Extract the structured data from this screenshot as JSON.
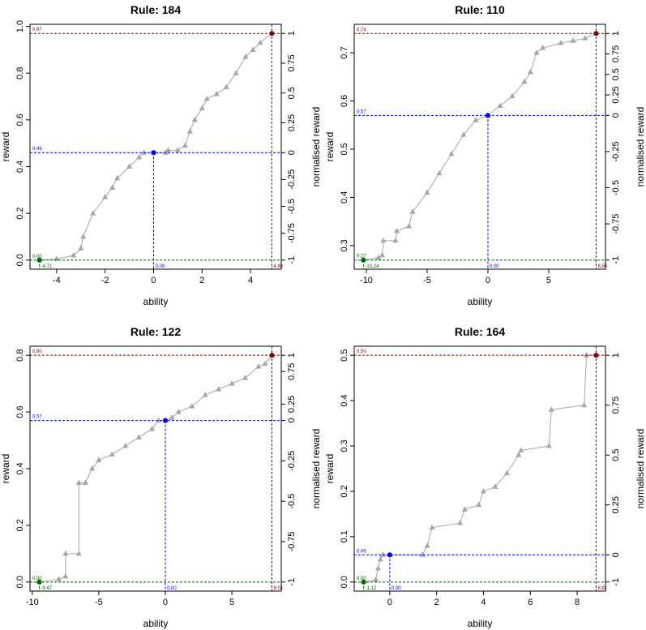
{
  "chart_data": [
    {
      "type": "line",
      "title": "Rule: 184",
      "x_label": "ability",
      "y_label": "reward",
      "y2_label": "normalised reward",
      "xlim": [
        -5.1,
        5.27
      ],
      "ylim": [
        -0.039,
        1.009
      ],
      "xticks": [
        -4,
        -2,
        0,
        2,
        4
      ],
      "yticks": [
        {
          "value": 0,
          "label": "0.0"
        },
        0.2,
        0.4,
        0.6,
        0.8,
        {
          "value": 1,
          "label": "1.0"
        }
      ],
      "y2ticks": [
        -1,
        -0.75,
        -0.5,
        -0.25,
        0,
        0.25,
        0.5,
        0.75,
        1
      ],
      "series": [
        {
          "color": "#a6a6a6",
          "marker": "triangle",
          "x": [
            -4.71,
            -4,
            -3.3,
            -3,
            -2.9,
            -2.5,
            -2,
            -1.7,
            -1.5,
            -1,
            -0.6,
            -0.4,
            0,
            0.5,
            0.6,
            1,
            1.3,
            1.5,
            1.7,
            2,
            2.2,
            2.6,
            3,
            3.4,
            3.8,
            4.1,
            4.4,
            4.88
          ],
          "values": [
            0,
            0.005,
            0.02,
            0.05,
            0.1,
            0.2,
            0.27,
            0.31,
            0.35,
            0.4,
            0.44,
            0.46,
            0.46,
            0.46,
            0.47,
            0.47,
            0.49,
            0.55,
            0.6,
            0.65,
            0.69,
            0.71,
            0.74,
            0.8,
            0.87,
            0.9,
            0.93,
            0.97
          ]
        }
      ],
      "reference_points": {
        "x": [
          -4.71,
          0,
          4.88
        ],
        "values": [
          0,
          0.46,
          0.97
        ],
        "x_labels": [
          "-4.71",
          "0.00",
          "4.88"
        ],
        "value_labels": [
          "0.00",
          "0.46",
          "0.97"
        ],
        "colors": [
          "#006400",
          "#0000ff",
          "#8b0000"
        ]
      }
    },
    {
      "type": "line",
      "title": "Rule: 110",
      "x_label": "ability",
      "y_label": "reward",
      "y2_label": "normalised reward",
      "xlim": [
        -11.0,
        9.67
      ],
      "ylim": [
        0.251,
        0.759
      ],
      "xticks": [
        -10,
        -5,
        0,
        5
      ],
      "yticks": [
        0.3,
        0.4,
        0.5,
        0.6,
        0.7
      ],
      "y2ticks": [
        -1,
        -0.75,
        -0.5,
        -0.25,
        0,
        0.25,
        0.5,
        0.75,
        1
      ],
      "series": [
        {
          "color": "#a6a6a6",
          "marker": "triangle",
          "x": [
            -10.24,
            -9,
            -8.7,
            -8.6,
            -7.6,
            -7.5,
            -6.5,
            -6.2,
            -5,
            -4,
            -3,
            -2,
            -1,
            0,
            1,
            2,
            3,
            3.5,
            4,
            4.5,
            6,
            7,
            8,
            8.9
          ],
          "values": [
            0.27,
            0.275,
            0.28,
            0.31,
            0.31,
            0.33,
            0.34,
            0.37,
            0.41,
            0.45,
            0.49,
            0.53,
            0.56,
            0.57,
            0.59,
            0.61,
            0.64,
            0.66,
            0.7,
            0.71,
            0.72,
            0.725,
            0.73,
            0.74
          ]
        }
      ],
      "reference_points": {
        "x": [
          -10.24,
          0,
          8.9
        ],
        "values": [
          0.27,
          0.57,
          0.74
        ],
        "x_labels": [
          "-10.24",
          "0.00",
          "8.90"
        ],
        "value_labels": [
          "0.27",
          "0.57",
          "0.74"
        ],
        "colors": [
          "#006400",
          "#0000ff",
          "#8b0000"
        ]
      }
    },
    {
      "type": "line",
      "title": "Rule: 122",
      "x_label": "ability",
      "y_label": "reward",
      "y2_label": "normalised reward",
      "xlim": [
        -10.17,
        8.71
      ],
      "ylim": [
        -0.032,
        0.832
      ],
      "xticks": [
        -10,
        -5,
        0,
        5
      ],
      "yticks": [
        {
          "value": 0,
          "label": "0.0"
        },
        0.2,
        0.4,
        0.6,
        0.8
      ],
      "y2ticks": [
        -1,
        -0.75,
        -0.5,
        -0.25,
        0,
        0.25,
        0.75,
        1
      ],
      "series": [
        {
          "color": "#a6a6a6",
          "marker": "triangle",
          "x": [
            -9.47,
            -8,
            -7.5,
            -7.5,
            -6.5,
            -6.5,
            -6,
            -5.5,
            -5,
            -4,
            -3,
            -2,
            -1,
            -0.5,
            0,
            0.5,
            1,
            2,
            3,
            4,
            5,
            6,
            7,
            7.5,
            8.01
          ],
          "values": [
            0,
            0.01,
            0.02,
            0.1,
            0.1,
            0.35,
            0.35,
            0.4,
            0.43,
            0.45,
            0.48,
            0.51,
            0.54,
            0.57,
            0.57,
            0.58,
            0.6,
            0.62,
            0.66,
            0.68,
            0.7,
            0.72,
            0.76,
            0.77,
            0.8
          ]
        }
      ],
      "reference_points": {
        "x": [
          -9.47,
          0,
          8.01
        ],
        "values": [
          0,
          0.57,
          0.8
        ],
        "x_labels": [
          "-9.47",
          "0.00",
          "8.01"
        ],
        "value_labels": [
          "0.00",
          "0.57",
          "0.80"
        ],
        "colors": [
          "#006400",
          "#0000ff",
          "#8b0000"
        ]
      }
    },
    {
      "type": "line",
      "title": "Rule: 164",
      "x_label": "ability",
      "y_label": "reward",
      "y2_label": "normalised reward",
      "xlim": [
        -1.52,
        9.21
      ],
      "ylim": [
        -0.02,
        0.52
      ],
      "xticks": [
        0,
        2,
        4,
        6,
        8
      ],
      "yticks": [
        {
          "value": 0,
          "label": "0.0"
        },
        0.1,
        0.2,
        0.3,
        0.4,
        0.5
      ],
      "y2ticks": [
        -1,
        0,
        0.25,
        0.5,
        0.75,
        1
      ],
      "series": [
        {
          "color": "#a6a6a6",
          "marker": "triangle",
          "x": [
            -1.12,
            -0.6,
            -0.5,
            -0.4,
            -0.3,
            0,
            1.4,
            1.6,
            1.8,
            3,
            3.2,
            3.8,
            4,
            4.5,
            5,
            5.5,
            5.6,
            6.8,
            6.9,
            8.3,
            8.4,
            8.81
          ],
          "values": [
            0,
            0.005,
            0.03,
            0.05,
            0.06,
            0.06,
            0.06,
            0.08,
            0.12,
            0.13,
            0.16,
            0.17,
            0.2,
            0.21,
            0.24,
            0.28,
            0.29,
            0.3,
            0.38,
            0.39,
            0.5,
            0.5
          ]
        }
      ],
      "reference_points": {
        "x": [
          -1.12,
          0,
          8.81
        ],
        "values": [
          0,
          0.06,
          0.5
        ],
        "x_labels": [
          "-1.12",
          "0.00",
          "8.81"
        ],
        "value_labels": [
          "0.00",
          "0.06",
          "0.50"
        ],
        "colors": [
          "#006400",
          "#0000ff",
          "#8b0000"
        ]
      }
    }
  ]
}
